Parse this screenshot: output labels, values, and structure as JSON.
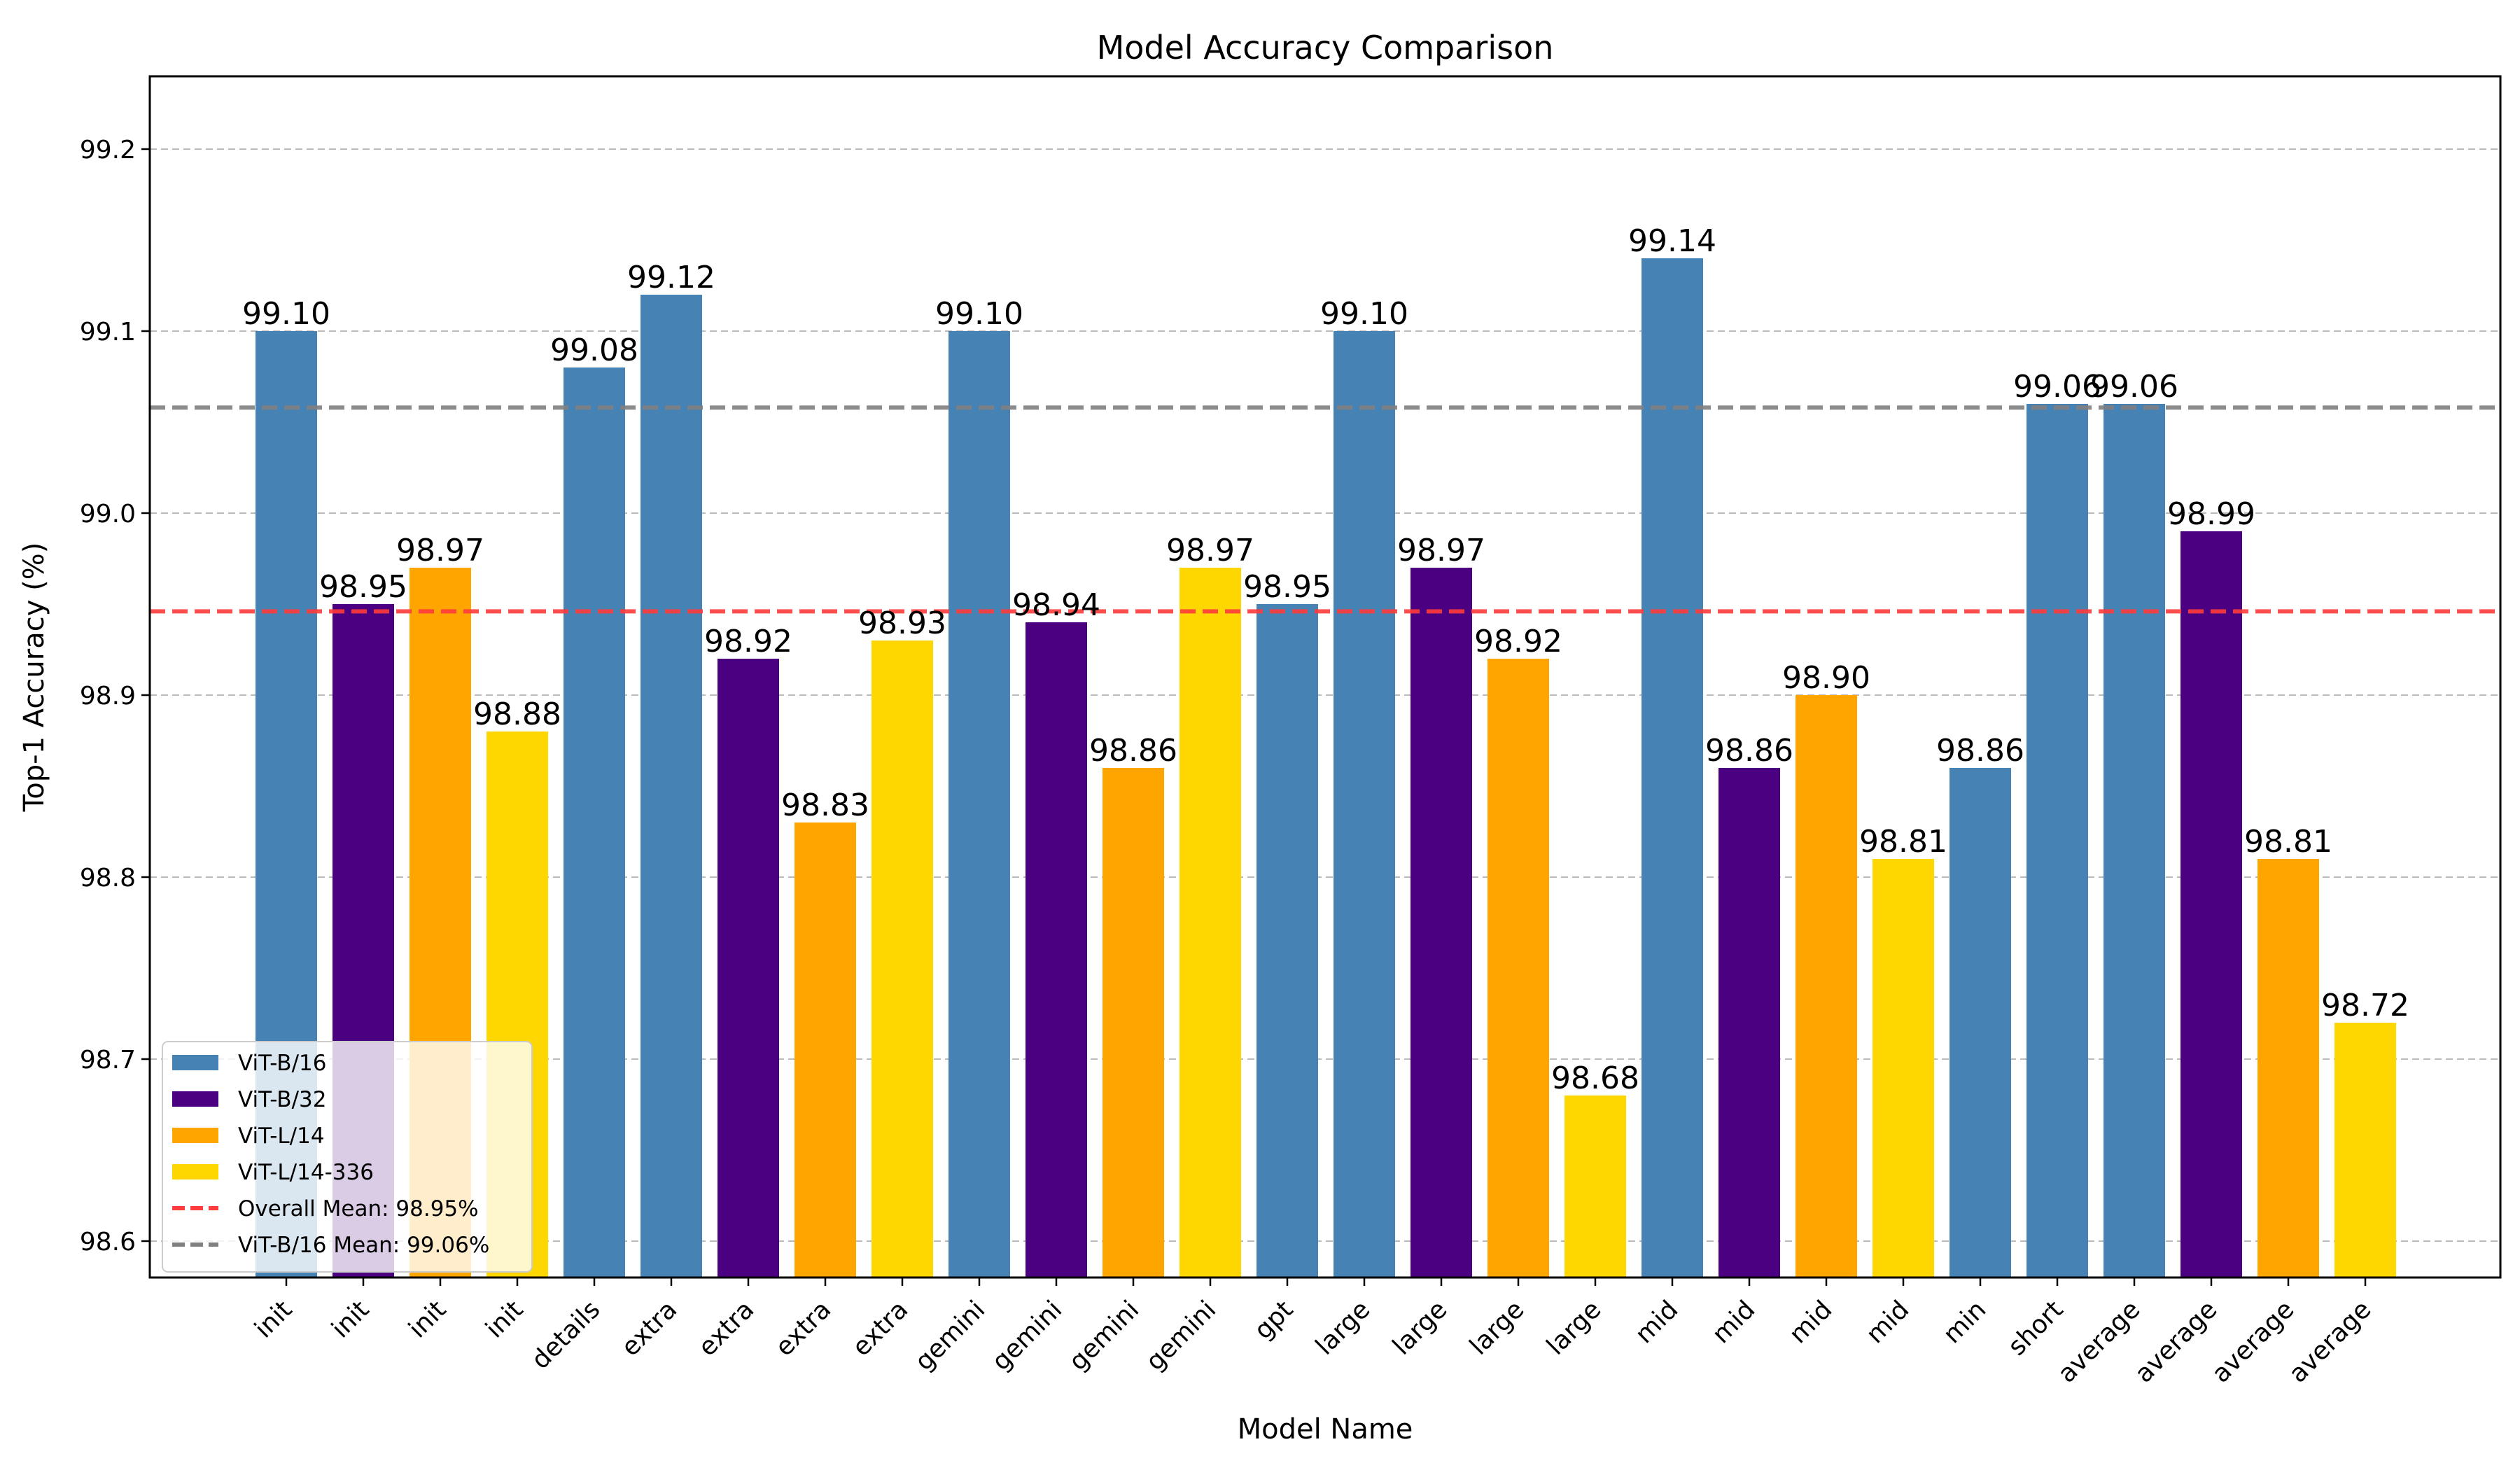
{
  "chart_data": {
    "type": "bar",
    "title": "Model  Accuracy Comparison",
    "xlabel": "Model Name",
    "ylabel": "Top-1 Accuracy (%)",
    "ylim": [
      98.58,
      99.24
    ],
    "yticks": [
      98.6,
      98.7,
      98.8,
      98.9,
      99.0,
      99.1,
      99.2
    ],
    "ytick_labels": [
      "98.6",
      "98.7",
      "98.8",
      "98.9",
      "99.0",
      "99.1",
      "99.2"
    ],
    "grid": "horizontal dashed",
    "legend_position": "lower-left",
    "series_colors": {
      "ViT-B/16": "#4682B4",
      "ViT-B/32": "#4B0082",
      "ViT-L/14": "#FFA500",
      "ViT-L/14-336": "#FFD700"
    },
    "bars": [
      {
        "x": "init",
        "series": "ViT-B/16",
        "value": 99.1,
        "label": "99.10"
      },
      {
        "x": "init",
        "series": "ViT-B/32",
        "value": 98.95,
        "label": "98.95"
      },
      {
        "x": "init",
        "series": "ViT-L/14",
        "value": 98.97,
        "label": "98.97"
      },
      {
        "x": "init",
        "series": "ViT-L/14-336",
        "value": 98.88,
        "label": "98.88"
      },
      {
        "x": "details",
        "series": "ViT-B/16",
        "value": 99.08,
        "label": "99.08"
      },
      {
        "x": "extra",
        "series": "ViT-B/16",
        "value": 99.12,
        "label": "99.12"
      },
      {
        "x": "extra",
        "series": "ViT-B/32",
        "value": 98.92,
        "label": "98.92"
      },
      {
        "x": "extra",
        "series": "ViT-L/14",
        "value": 98.83,
        "label": "98.83"
      },
      {
        "x": "extra",
        "series": "ViT-L/14-336",
        "value": 98.93,
        "label": "98.93"
      },
      {
        "x": "gemini",
        "series": "ViT-B/16",
        "value": 99.1,
        "label": "99.10"
      },
      {
        "x": "gemini",
        "series": "ViT-B/32",
        "value": 98.94,
        "label": "98.94"
      },
      {
        "x": "gemini",
        "series": "ViT-L/14",
        "value": 98.86,
        "label": "98.86"
      },
      {
        "x": "gemini",
        "series": "ViT-L/14-336",
        "value": 98.97,
        "label": "98.97"
      },
      {
        "x": "gpt",
        "series": "ViT-B/16",
        "value": 98.95,
        "label": "98.95"
      },
      {
        "x": "large",
        "series": "ViT-B/16",
        "value": 99.1,
        "label": "99.10"
      },
      {
        "x": "large",
        "series": "ViT-B/32",
        "value": 98.97,
        "label": "98.97"
      },
      {
        "x": "large",
        "series": "ViT-L/14",
        "value": 98.92,
        "label": "98.92"
      },
      {
        "x": "large",
        "series": "ViT-L/14-336",
        "value": 98.68,
        "label": "98.68"
      },
      {
        "x": "mid",
        "series": "ViT-B/16",
        "value": 99.14,
        "label": "99.14"
      },
      {
        "x": "mid",
        "series": "ViT-B/32",
        "value": 98.86,
        "label": "98.86"
      },
      {
        "x": "mid",
        "series": "ViT-L/14",
        "value": 98.9,
        "label": "98.90"
      },
      {
        "x": "mid",
        "series": "ViT-L/14-336",
        "value": 98.81,
        "label": "98.81"
      },
      {
        "x": "min",
        "series": "ViT-B/16",
        "value": 98.86,
        "label": "98.86"
      },
      {
        "x": "short",
        "series": "ViT-B/16",
        "value": 99.06,
        "label": "99.06"
      },
      {
        "x": "average",
        "series": "ViT-B/16",
        "value": 99.06,
        "label": "99.06"
      },
      {
        "x": "average",
        "series": "ViT-B/32",
        "value": 98.99,
        "label": "98.99"
      },
      {
        "x": "average",
        "series": "ViT-L/14",
        "value": 98.81,
        "label": "98.81"
      },
      {
        "x": "average",
        "series": "ViT-L/14-336",
        "value": 98.72,
        "label": "98.72"
      }
    ],
    "reference_lines": [
      {
        "name": "Overall Mean: 98.95%",
        "value": 98.946,
        "color": "#FF3B3B",
        "style": "dashed"
      },
      {
        "name": "ViT-B/16 Mean: 99.06%",
        "value": 99.058,
        "color": "#808080",
        "style": "dashed"
      }
    ],
    "legend": [
      {
        "label": "ViT-B/16",
        "kind": "patch",
        "color": "#4682B4"
      },
      {
        "label": "ViT-B/32",
        "kind": "patch",
        "color": "#4B0082"
      },
      {
        "label": "ViT-L/14",
        "kind": "patch",
        "color": "#FFA500"
      },
      {
        "label": "ViT-L/14-336",
        "kind": "patch",
        "color": "#FFD700"
      },
      {
        "label": "Overall Mean: 98.95%",
        "kind": "line",
        "color": "#FF3B3B"
      },
      {
        "label": "ViT-B/16 Mean: 99.06%",
        "kind": "line",
        "color": "#808080"
      }
    ]
  }
}
